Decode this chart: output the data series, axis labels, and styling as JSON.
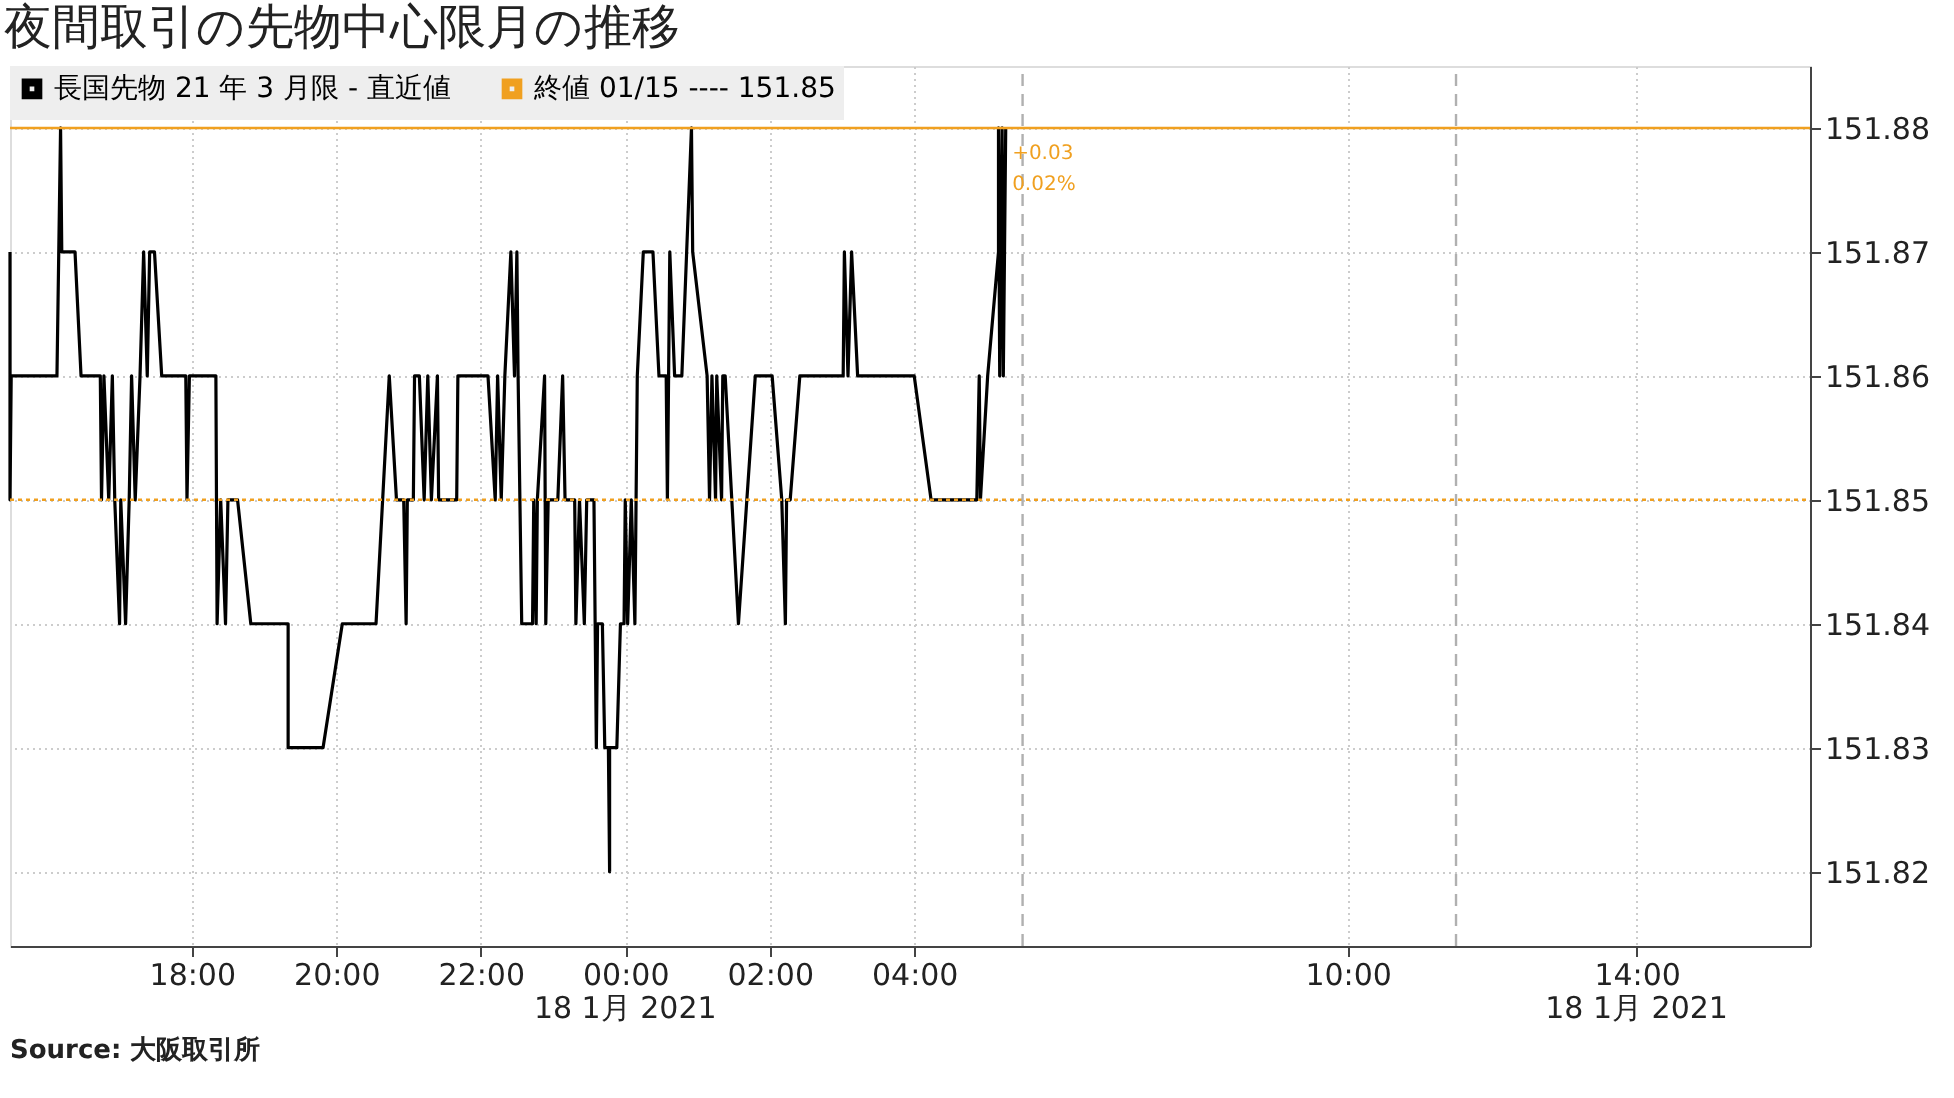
{
  "chart_data": {
    "type": "line",
    "title": "夜間取引の先物中心限月の推移",
    "series": [
      {
        "name": "長国先物 21 年  3 月限 - 直近値",
        "color": "#000000",
        "x": [
          "2021-01-17T15:29",
          "2021-01-17T15:29",
          "2021-01-17T15:30",
          "2021-01-17T16:08",
          "2021-01-17T16:11",
          "2021-01-17T16:12",
          "2021-01-17T16:23",
          "2021-01-17T16:28",
          "2021-01-17T16:44",
          "2021-01-17T16:45",
          "2021-01-17T16:47",
          "2021-01-17T16:51",
          "2021-01-17T16:54",
          "2021-01-17T16:56",
          "2021-01-17T17:00",
          "2021-01-17T17:01",
          "2021-01-17T17:05",
          "2021-01-17T17:08",
          "2021-01-17T17:10",
          "2021-01-17T17:13",
          "2021-01-17T17:17",
          "2021-01-17T17:20",
          "2021-01-17T17:23",
          "2021-01-17T17:25",
          "2021-01-17T17:29",
          "2021-01-17T17:35",
          "2021-01-17T17:55",
          "2021-01-17T17:56",
          "2021-01-17T17:58",
          "2021-01-17T18:20",
          "2021-01-17T18:21",
          "2021-01-17T18:24",
          "2021-01-17T18:28",
          "2021-01-17T18:30",
          "2021-01-17T18:38",
          "2021-01-17T18:49",
          "2021-01-17T19:20",
          "2021-01-17T19:20",
          "2021-01-17T19:49",
          "2021-01-17T20:05",
          "2021-01-17T20:33",
          "2021-01-17T20:44",
          "2021-01-17T20:50",
          "2021-01-17T20:56",
          "2021-01-17T20:58",
          "2021-01-17T20:59",
          "2021-01-17T21:04",
          "2021-01-17T21:05",
          "2021-01-17T21:09",
          "2021-01-17T21:13",
          "2021-01-17T21:16",
          "2021-01-17T21:19",
          "2021-01-17T21:24",
          "2021-01-17T21:25",
          "2021-01-17T21:40",
          "2021-01-17T21:41",
          "2021-01-17T22:06",
          "2021-01-17T22:12",
          "2021-01-17T22:14",
          "2021-01-17T22:17",
          "2021-01-17T22:20",
          "2021-01-17T22:25",
          "2021-01-17T22:28",
          "2021-01-17T22:30",
          "2021-01-17T22:31",
          "2021-01-17T22:34",
          "2021-01-17T22:43",
          "2021-01-17T22:44",
          "2021-01-17T22:46",
          "2021-01-17T22:47",
          "2021-01-17T22:53",
          "2021-01-17T22:54",
          "2021-01-17T22:56",
          "2021-01-17T23:04",
          "2021-01-17T23:08",
          "2021-01-17T23:10",
          "2021-01-17T23:18",
          "2021-01-17T23:19",
          "2021-01-17T23:22",
          "2021-01-17T23:26",
          "2021-01-17T23:28",
          "2021-01-17T23:34",
          "2021-01-17T23:35",
          "2021-01-17T23:36",
          "2021-01-17T23:37",
          "2021-01-17T23:41",
          "2021-01-17T23:43",
          "2021-01-17T23:46",
          "2021-01-17T23:47",
          "2021-01-17T23:47",
          "2021-01-17T23:53",
          "2021-01-17T23:56",
          "2021-01-17T23:59",
          "2021-01-18T00:00",
          "2021-01-18T00:02",
          "2021-01-18T00:05",
          "2021-01-18T00:08",
          "2021-01-18T00:10",
          "2021-01-18T00:15",
          "2021-01-18T00:23",
          "2021-01-18T00:28",
          "2021-01-18T00:34",
          "2021-01-18T00:35",
          "2021-01-18T00:37",
          "2021-01-18T00:41",
          "2021-01-18T00:47",
          "2021-01-18T00:55",
          "2021-01-18T00:56",
          "2021-01-18T01:08",
          "2021-01-18T01:10",
          "2021-01-18T01:12",
          "2021-01-18T01:15",
          "2021-01-18T01:16",
          "2021-01-18T01:20",
          "2021-01-18T01:21",
          "2021-01-18T01:23",
          "2021-01-18T01:34",
          "2021-01-18T01:48",
          "2021-01-18T02:02",
          "2021-01-18T02:10",
          "2021-01-18T02:13",
          "2021-01-18T02:14",
          "2021-01-18T02:17",
          "2021-01-18T02:25",
          "2021-01-18T03:01",
          "2021-01-18T03:02",
          "2021-01-18T03:05",
          "2021-01-18T03:08",
          "2021-01-18T03:13",
          "2021-01-18T04:00",
          "2021-01-18T04:14",
          "2021-01-18T04:52",
          "2021-01-18T04:54",
          "2021-01-18T04:55",
          "2021-01-18T05:01",
          "2021-01-18T05:10",
          "2021-01-18T05:10",
          "2021-01-18T05:11",
          "2021-01-18T05:13",
          "2021-01-18T05:14",
          "2021-01-18T05:16"
        ],
        "values": [
          151.87,
          151.85,
          151.86,
          151.86,
          151.88,
          151.87,
          151.87,
          151.86,
          151.86,
          151.85,
          151.86,
          151.85,
          151.86,
          151.85,
          151.84,
          151.85,
          151.84,
          151.85,
          151.86,
          151.85,
          151.86,
          151.87,
          151.86,
          151.87,
          151.87,
          151.86,
          151.86,
          151.85,
          151.86,
          151.86,
          151.84,
          151.85,
          151.84,
          151.85,
          151.85,
          151.84,
          151.84,
          151.83,
          151.83,
          151.84,
          151.84,
          151.86,
          151.85,
          151.85,
          151.84,
          151.85,
          151.85,
          151.86,
          151.86,
          151.85,
          151.86,
          151.85,
          151.86,
          151.85,
          151.85,
          151.86,
          151.86,
          151.85,
          151.86,
          151.85,
          151.86,
          151.87,
          151.86,
          151.87,
          151.86,
          151.84,
          151.84,
          151.85,
          151.84,
          151.85,
          151.86,
          151.84,
          151.85,
          151.85,
          151.86,
          151.85,
          151.85,
          151.84,
          151.85,
          151.84,
          151.85,
          151.85,
          151.84,
          151.83,
          151.84,
          151.84,
          151.83,
          151.83,
          151.82,
          151.83,
          151.83,
          151.84,
          151.84,
          151.85,
          151.84,
          151.85,
          151.84,
          151.86,
          151.87,
          151.87,
          151.86,
          151.86,
          151.85,
          151.87,
          151.86,
          151.86,
          151.88,
          151.87,
          151.86,
          151.85,
          151.86,
          151.85,
          151.86,
          151.85,
          151.86,
          151.86,
          151.84,
          151.86,
          151.86,
          151.85,
          151.84,
          151.85,
          151.85,
          151.86,
          151.86,
          151.87,
          151.86,
          151.87,
          151.86,
          151.86,
          151.85,
          151.85,
          151.86,
          151.85,
          151.86,
          151.87,
          151.88,
          151.86,
          151.88,
          151.86,
          151.88
        ]
      }
    ],
    "xlim": [
      "2021-01-17T15:29",
      "2021-01-18T16:24"
    ],
    "xticks": [
      {
        "value": "2021-01-17T18:00",
        "label": "18:00"
      },
      {
        "value": "2021-01-17T20:00",
        "label": "20:00"
      },
      {
        "value": "2021-01-17T22:00",
        "label": "22:00"
      },
      {
        "value": "2021-01-18T00:00",
        "label": "00:00"
      },
      {
        "value": "2021-01-18T02:00",
        "label": "02:00"
      },
      {
        "value": "2021-01-18T04:00",
        "label": "04:00"
      },
      {
        "value": "2021-01-18T10:00",
        "label": "10:00"
      },
      {
        "value": "2021-01-18T14:00",
        "label": "14:00"
      }
    ],
    "ylim": [
      151.814,
      151.885
    ],
    "yticks": [
      151.82,
      151.83,
      151.84,
      151.85,
      151.86,
      151.87,
      151.88
    ],
    "grid": true,
    "legend": "top left",
    "line_style": "solid",
    "marker": "none",
    "ref_lines": [
      {
        "axis": "y",
        "value": 151.85,
        "label": "終値 01/15 ---- 151.85",
        "color": "#f0a020",
        "line_style": "dotted"
      },
      {
        "axis": "y",
        "value": 151.88,
        "color": "#f0a020",
        "line_style": "solid"
      },
      {
        "axis": "x",
        "value": "2021-01-18T05:30",
        "color": "#b0b0b0",
        "line_style": "dashed"
      },
      {
        "axis": "x",
        "value": "2021-01-18T11:30",
        "color": "#b0b0b0",
        "line_style": "dashed"
      }
    ],
    "annotations": [
      {
        "text": "+0.03",
        "x": "2021-01-18T05:18",
        "y": 151.878
      },
      {
        "text": "0.02%",
        "x": "2021-01-18T05:18",
        "y": 151.8755
      },
      "18 1月  2021",
      "18 1月  2021",
      "Source:  大阪取引所"
    ]
  }
}
